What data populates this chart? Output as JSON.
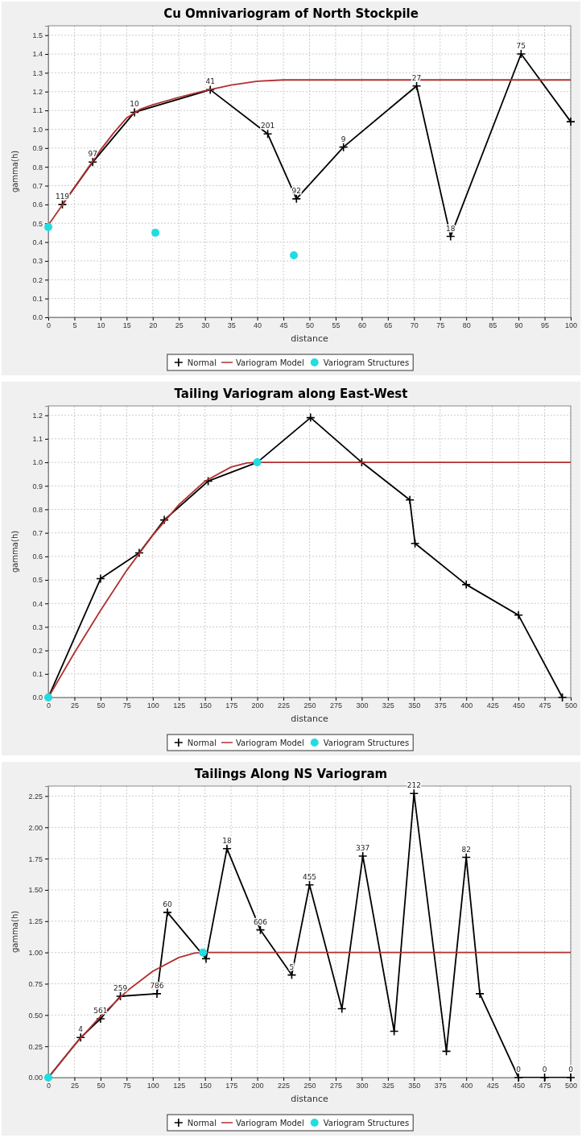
{
  "chart_data": [
    {
      "type": "line",
      "title": "Cu Omnivariogram of North Stockpile",
      "xlabel": "distance",
      "ylabel": "gamma(h)",
      "xlim": [
        0,
        100
      ],
      "ylim": [
        0,
        1.55
      ],
      "xticks": [
        0,
        5,
        10,
        15,
        20,
        25,
        30,
        35,
        40,
        45,
        50,
        55,
        60,
        65,
        70,
        75,
        80,
        85,
        90,
        95,
        100
      ],
      "yticks": [
        {
          "value": 0,
          "label": "0.0"
        },
        0.1,
        0.2,
        0.3,
        0.4,
        0.5,
        0.6,
        0.7,
        0.8,
        0.9,
        {
          "value": 1,
          "label": "1.0"
        },
        1.1,
        1.2,
        1.3,
        1.4,
        1.5
      ],
      "grid": true,
      "legend": "bottom",
      "series": [
        {
          "name": "Normal",
          "type": "line",
          "marker": "cross",
          "color": "#000000",
          "x": [
            2.7,
            8.5,
            16.5,
            31,
            42,
            47.5,
            56.5,
            70.5,
            77,
            90.5,
            100
          ],
          "values": [
            0.6,
            0.825,
            1.09,
            1.21,
            0.975,
            0.63,
            0.905,
            1.23,
            0.43,
            1.4,
            1.04
          ]
        },
        {
          "name": "Variogram Model",
          "type": "line",
          "marker": "none",
          "color": "#b03030",
          "x": [
            0,
            2.5,
            5,
            7.5,
            10,
            12.5,
            15,
            17.5,
            20,
            25,
            30,
            35,
            40,
            45,
            100
          ],
          "values": [
            0.49,
            0.59,
            0.69,
            0.79,
            0.89,
            0.98,
            1.06,
            1.105,
            1.13,
            1.17,
            1.205,
            1.235,
            1.255,
            1.262,
            1.262
          ]
        },
        {
          "name": "Variogram Structures",
          "type": "scatter",
          "marker": "circle",
          "color": "#22dde0",
          "x": [
            0,
            20.5,
            47
          ],
          "values": [
            0.48,
            0.45,
            0.33
          ]
        }
      ],
      "annotations": [
        {
          "text": "119",
          "x": 2.7,
          "y": 0.6
        },
        {
          "text": "97",
          "x": 8.5,
          "y": 0.825
        },
        {
          "text": "10",
          "x": 16.5,
          "y": 1.09
        },
        {
          "text": "41",
          "x": 31,
          "y": 1.21
        },
        {
          "text": "201",
          "x": 42,
          "y": 0.975
        },
        {
          "text": "92",
          "x": 47.5,
          "y": 0.63
        },
        {
          "text": "9",
          "x": 56.5,
          "y": 0.905
        },
        {
          "text": "27",
          "x": 70.5,
          "y": 1.23
        },
        {
          "text": "18",
          "x": 77,
          "y": 0.43
        },
        {
          "text": "75",
          "x": 90.5,
          "y": 1.4
        }
      ]
    },
    {
      "type": "line",
      "title": "Tailing Variogram along East-West",
      "xlabel": "distance",
      "ylabel": "gamma(h)",
      "xlim": [
        0,
        500
      ],
      "ylim": [
        0,
        1.24
      ],
      "xticks": [
        0,
        25,
        50,
        75,
        100,
        125,
        150,
        175,
        200,
        225,
        250,
        275,
        300,
        325,
        350,
        375,
        400,
        425,
        450,
        475,
        500
      ],
      "yticks": [
        {
          "value": 0,
          "label": "0.0"
        },
        0.1,
        0.2,
        0.3,
        0.4,
        0.5,
        0.6,
        0.7,
        0.8,
        0.9,
        {
          "value": 1,
          "label": "1.0"
        },
        1.1,
        1.2
      ],
      "grid": true,
      "legend": "bottom",
      "series": [
        {
          "name": "Normal",
          "type": "line",
          "marker": "cross",
          "color": "#000000",
          "x": [
            0,
            50,
            87,
            111,
            153,
            200,
            251,
            300,
            346,
            351,
            400,
            450,
            492
          ],
          "values": [
            0,
            0.505,
            0.615,
            0.755,
            0.92,
            1.0,
            1.19,
            1.0,
            0.84,
            0.655,
            0.48,
            0.35,
            0
          ]
        },
        {
          "name": "Variogram Model",
          "type": "line",
          "marker": "none",
          "color": "#b03030",
          "x": [
            0,
            25,
            50,
            75,
            100,
            125,
            150,
            175,
            190,
            200,
            500
          ],
          "values": [
            0,
            0.19,
            0.37,
            0.54,
            0.69,
            0.82,
            0.92,
            0.98,
            0.997,
            1.0,
            1.0
          ]
        },
        {
          "name": "Variogram Structures",
          "type": "scatter",
          "marker": "circle",
          "color": "#22dde0",
          "x": [
            0,
            200
          ],
          "values": [
            0,
            1.0
          ]
        }
      ]
    },
    {
      "type": "line",
      "title": "Tailings Along NS Variogram",
      "xlabel": "distance",
      "ylabel": "gamma(h)",
      "xlim": [
        0,
        500
      ],
      "ylim": [
        0,
        2.33
      ],
      "xticks": [
        0,
        25,
        50,
        75,
        100,
        125,
        150,
        175,
        200,
        225,
        250,
        275,
        300,
        325,
        350,
        375,
        400,
        425,
        450,
        475,
        500
      ],
      "yticks": [
        {
          "value": 0,
          "label": "0.00"
        },
        0.25,
        {
          "value": 0.5,
          "label": "0.50"
        },
        0.75,
        {
          "value": 1,
          "label": "1.00"
        },
        1.25,
        {
          "value": 1.5,
          "label": "1.50"
        },
        1.75,
        {
          "value": 2,
          "label": "2.00"
        },
        2.25
      ],
      "grid": true,
      "legend": "bottom",
      "series": [
        {
          "name": "Normal",
          "type": "line",
          "marker": "cross",
          "color": "#000000",
          "x": [
            0,
            31,
            50,
            69,
            104,
            114,
            151,
            171,
            203,
            233,
            250,
            281,
            301,
            331,
            350,
            381,
            400,
            413,
            450,
            475,
            500
          ],
          "values": [
            0,
            0.32,
            0.47,
            0.65,
            0.67,
            1.32,
            0.95,
            1.83,
            1.18,
            0.82,
            1.54,
            0.55,
            1.77,
            0.37,
            2.27,
            0.21,
            1.76,
            0.67,
            0,
            0,
            0
          ]
        },
        {
          "name": "Variogram Model",
          "type": "line",
          "marker": "none",
          "color": "#b03030",
          "x": [
            0,
            25,
            50,
            75,
            100,
            125,
            140,
            150,
            500
          ],
          "values": [
            0,
            0.26,
            0.49,
            0.69,
            0.85,
            0.96,
            0.995,
            1.0,
            1.0
          ]
        },
        {
          "name": "Variogram Structures",
          "type": "scatter",
          "marker": "circle",
          "color": "#22dde0",
          "x": [
            0,
            148
          ],
          "values": [
            0,
            1.0
          ]
        }
      ],
      "annotations": [
        {
          "text": "4",
          "x": 31,
          "y": 0.32
        },
        {
          "text": "561",
          "x": 50,
          "y": 0.47
        },
        {
          "text": "259",
          "x": 69,
          "y": 0.65
        },
        {
          "text": "786",
          "x": 104,
          "y": 0.67
        },
        {
          "text": "60",
          "x": 114,
          "y": 1.32
        },
        {
          "text": "18",
          "x": 171,
          "y": 1.83
        },
        {
          "text": "606",
          "x": 203,
          "y": 1.18
        },
        {
          "text": "5",
          "x": 233,
          "y": 0.82
        },
        {
          "text": "455",
          "x": 250,
          "y": 1.54
        },
        {
          "text": "337",
          "x": 301,
          "y": 1.77
        },
        {
          "text": "212",
          "x": 350,
          "y": 2.27
        },
        {
          "text": "82",
          "x": 400,
          "y": 1.76
        },
        {
          "text": "0",
          "x": 450,
          "y": 0
        },
        {
          "text": "0",
          "x": 475,
          "y": 0
        },
        {
          "text": "0",
          "x": 500,
          "y": 0
        }
      ]
    }
  ]
}
